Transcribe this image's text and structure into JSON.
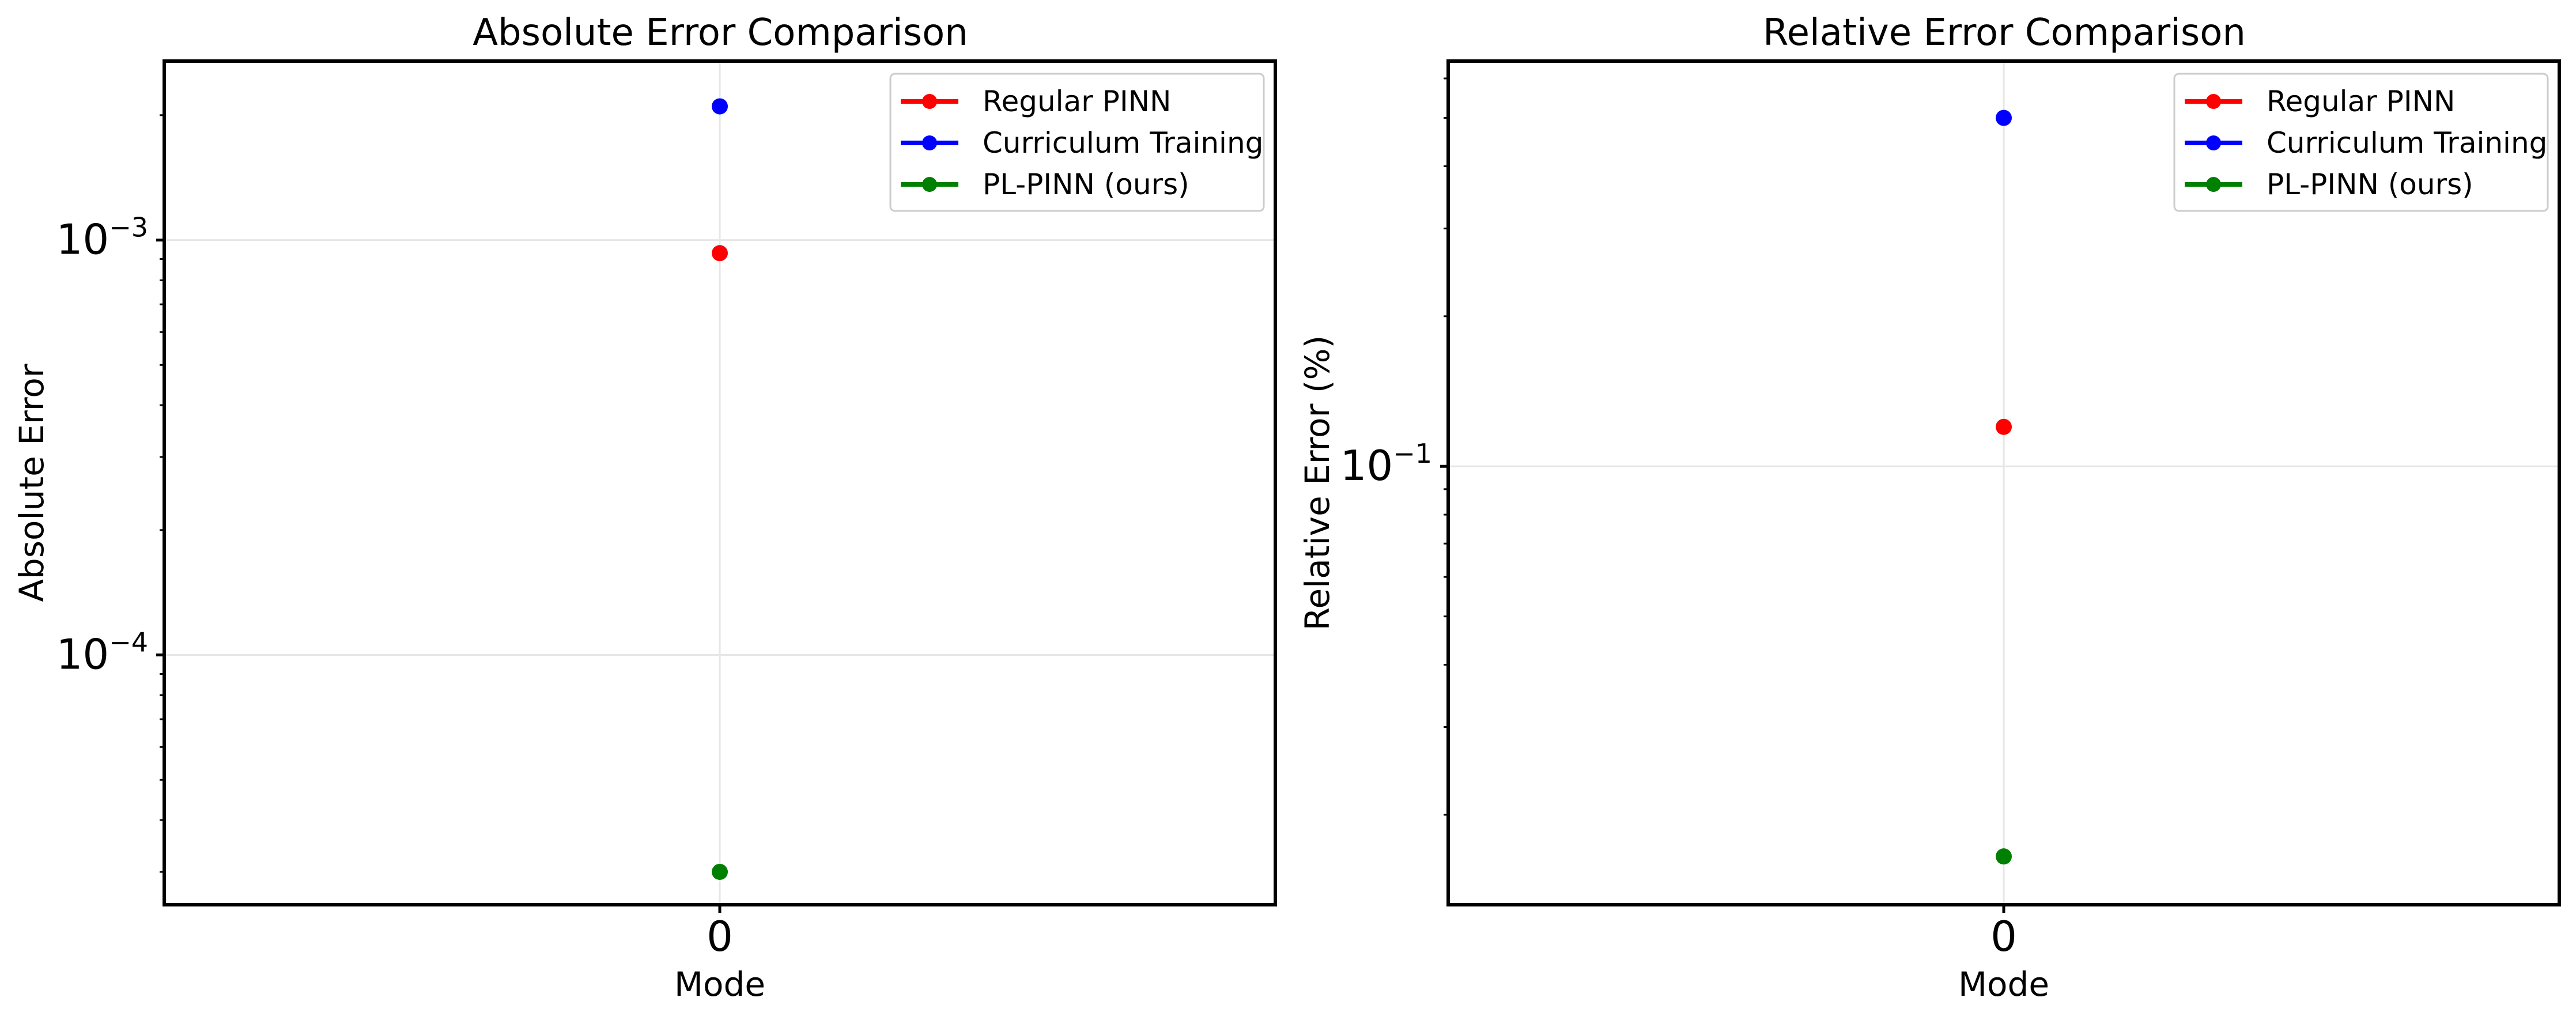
{
  "chart_data": [
    {
      "type": "scatter",
      "title": "Absolute Error Comparison",
      "xlabel": "Mode",
      "ylabel": "Absolute Error",
      "x_categories": [
        "0"
      ],
      "yscale": "log",
      "ylim": [
        2.5e-05,
        0.0027
      ],
      "y_major_ticks": [
        {
          "value": 0.0001,
          "base": "10",
          "exp": "−4"
        },
        {
          "value": 0.001,
          "base": "10",
          "exp": "−3"
        }
      ],
      "y_minor_ticks": [
        3e-05,
        4e-05,
        5e-05,
        6e-05,
        7e-05,
        8e-05,
        9e-05,
        0.0002,
        0.0003,
        0.0004,
        0.0005,
        0.0006,
        0.0007,
        0.0008,
        0.0009,
        0.002
      ],
      "grid": true,
      "legend": "top-right",
      "series": [
        {
          "name": "Regular PINN",
          "color": "#ff0000",
          "x": [
            0
          ],
          "y": [
            0.00093
          ]
        },
        {
          "name": "Curriculum Training",
          "color": "#0000ff",
          "x": [
            0
          ],
          "y": [
            0.0021
          ]
        },
        {
          "name": "PL-PINN (ours)",
          "color": "#008000",
          "x": [
            0
          ],
          "y": [
            3e-05
          ]
        }
      ]
    },
    {
      "type": "scatter",
      "title": "Relative Error Comparison",
      "xlabel": "Mode",
      "ylabel": "Relative Error (%)",
      "x_categories": [
        "0"
      ],
      "yscale": "log",
      "ylim": [
        0.0132,
        0.65
      ],
      "y_major_ticks": [
        {
          "value": 0.1,
          "base": "10",
          "exp": "−1"
        }
      ],
      "y_minor_ticks": [
        0.02,
        0.03,
        0.04,
        0.05,
        0.06,
        0.07,
        0.08,
        0.09,
        0.2,
        0.3,
        0.4,
        0.5,
        0.6
      ],
      "grid": true,
      "legend": "top-right",
      "series": [
        {
          "name": "Regular PINN",
          "color": "#ff0000",
          "x": [
            0
          ],
          "y": [
            0.12
          ]
        },
        {
          "name": "Curriculum Training",
          "color": "#0000ff",
          "x": [
            0
          ],
          "y": [
            0.5
          ]
        },
        {
          "name": "PL-PINN (ours)",
          "color": "#008000",
          "x": [
            0
          ],
          "y": [
            0.0165
          ]
        }
      ]
    }
  ]
}
